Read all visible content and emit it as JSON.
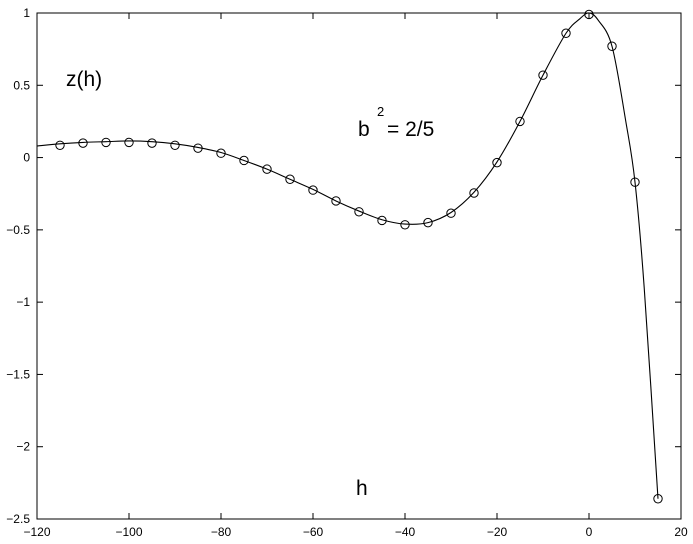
{
  "chart_data": {
    "type": "line",
    "title": "",
    "xlabel": "h",
    "ylabel": "z(h)",
    "xlim": [
      -120,
      20
    ],
    "ylim": [
      -2.5,
      1
    ],
    "xticks": [
      -120,
      -100,
      -80,
      -60,
      -40,
      -20,
      0,
      20
    ],
    "xtick_labels": [
      "−120",
      "−100",
      "−80",
      "−60",
      "−40",
      "−20",
      "0",
      "20"
    ],
    "yticks": [
      -2.5,
      -2,
      -1.5,
      -1,
      -0.5,
      0,
      0.5,
      1
    ],
    "ytick_labels": [
      "−2.5",
      "−2",
      "−1.5",
      "−1",
      "−0.5",
      "0",
      "0.5",
      "1"
    ],
    "grid": false,
    "annotation": {
      "base": "b",
      "sup": "2",
      "rest": " = 2/5"
    },
    "series": [
      {
        "style": "solid-line",
        "color": "#000000",
        "x": [
          -120,
          -115,
          -110,
          -105,
          -100,
          -95,
          -90,
          -85,
          -80,
          -75,
          -70,
          -65,
          -60,
          -55,
          -50,
          -45,
          -40,
          -35,
          -30,
          -25,
          -20,
          -15,
          -10,
          -5,
          -2,
          0,
          2,
          5,
          8,
          10,
          12,
          15
        ],
        "y": [
          0.08,
          0.095,
          0.105,
          0.11,
          0.115,
          0.11,
          0.095,
          0.07,
          0.035,
          -0.02,
          -0.08,
          -0.15,
          -0.22,
          -0.3,
          -0.37,
          -0.43,
          -0.46,
          -0.45,
          -0.38,
          -0.24,
          -0.03,
          0.25,
          0.57,
          0.86,
          0.96,
          1.0,
          0.95,
          0.77,
          0.25,
          -0.17,
          -0.9,
          -2.36
        ]
      },
      {
        "style": "circle-markers",
        "color": "#000000",
        "x": [
          -115,
          -110,
          -105,
          -100,
          -95,
          -90,
          -85,
          -80,
          -75,
          -70,
          -65,
          -60,
          -55,
          -50,
          -45,
          -40,
          -35,
          -30,
          -25,
          -20,
          -15,
          -10,
          -5,
          0,
          5,
          10,
          15
        ],
        "y": [
          0.085,
          0.1,
          0.105,
          0.105,
          0.1,
          0.085,
          0.065,
          0.03,
          -0.02,
          -0.08,
          -0.15,
          -0.225,
          -0.3,
          -0.375,
          -0.435,
          -0.465,
          -0.45,
          -0.385,
          -0.245,
          -0.035,
          0.25,
          0.57,
          0.86,
          0.99,
          0.77,
          -0.17,
          -2.36
        ]
      }
    ]
  }
}
